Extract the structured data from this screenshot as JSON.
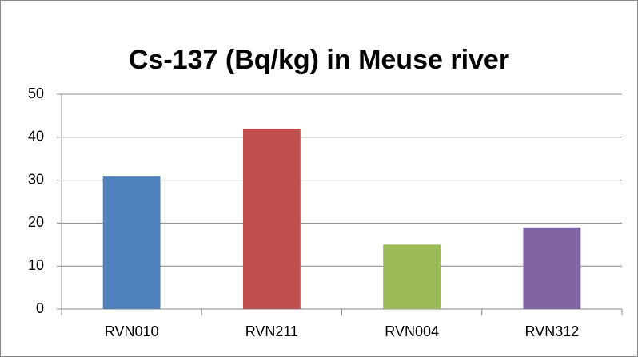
{
  "chart_data": {
    "type": "bar",
    "title": "Cs-137 (Bq/kg) in Meuse river",
    "categories": [
      "RVN010",
      "RVN211",
      "RVN004",
      "RVN312"
    ],
    "values": [
      31,
      42,
      15,
      19
    ],
    "colors": [
      "#4f81bd",
      "#c0504d",
      "#9bbb59",
      "#8064a2"
    ],
    "ylim": [
      0,
      50
    ],
    "yticks": [
      0,
      10,
      20,
      30,
      40,
      50
    ],
    "grid": true
  }
}
